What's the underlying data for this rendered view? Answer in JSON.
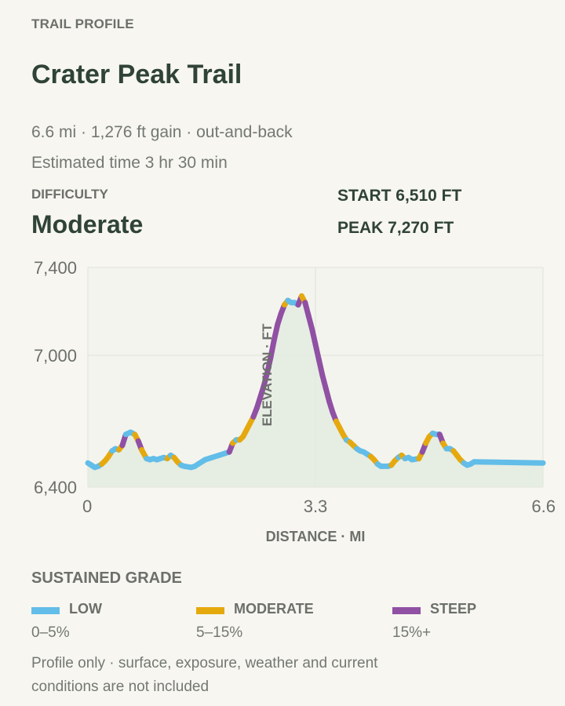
{
  "header": {
    "eyebrow": "TRAIL PROFILE",
    "title": "Crater Peak Trail",
    "meta_line": "6.6 mi · 1,276 ft gain · out-and-back",
    "time_line": "Estimated time 3 hr 30 min",
    "difficulty_label": "DIFFICULTY",
    "difficulty_value": "Moderate",
    "start_stat": "START 6,510 FT",
    "peak_stat": "PEAK 7,270 FT"
  },
  "chart_data": {
    "type": "line",
    "xlabel": "DISTANCE · MI",
    "ylabel": "ELEVATION · FT",
    "xlim": [
      0,
      6.6
    ],
    "ylim": [
      6400,
      7400
    ],
    "x_ticks": [
      {
        "value": 0,
        "label": "0"
      },
      {
        "value": 3.3,
        "label": "3.3"
      },
      {
        "value": 6.6,
        "label": "6.6"
      }
    ],
    "y_ticks": [
      {
        "value": 6400,
        "label": "6,400"
      },
      {
        "value": 7000,
        "label": "7,000"
      },
      {
        "value": 7400,
        "label": "7,400"
      }
    ],
    "grid": true,
    "colors": {
      "low": "#62bde8",
      "moderate": "#e5a90e",
      "steep": "#9050a3"
    },
    "points": [
      [
        0.0,
        6510
      ],
      [
        0.05,
        6500
      ],
      [
        0.1,
        6490
      ],
      [
        0.15,
        6495
      ],
      [
        0.2,
        6505
      ],
      [
        0.25,
        6520
      ],
      [
        0.3,
        6540
      ],
      [
        0.35,
        6565
      ],
      [
        0.4,
        6575
      ],
      [
        0.45,
        6570
      ],
      [
        0.5,
        6590
      ],
      [
        0.55,
        6640
      ],
      [
        0.62,
        6650
      ],
      [
        0.68,
        6640
      ],
      [
        0.73,
        6610
      ],
      [
        0.78,
        6570
      ],
      [
        0.85,
        6530
      ],
      [
        0.9,
        6525
      ],
      [
        0.95,
        6530
      ],
      [
        1.0,
        6525
      ],
      [
        1.05,
        6530
      ],
      [
        1.1,
        6535
      ],
      [
        1.15,
        6530
      ],
      [
        1.2,
        6545
      ],
      [
        1.25,
        6535
      ],
      [
        1.3,
        6515
      ],
      [
        1.35,
        6500
      ],
      [
        1.4,
        6495
      ],
      [
        1.5,
        6490
      ],
      [
        1.55,
        6495
      ],
      [
        1.6,
        6505
      ],
      [
        1.65,
        6515
      ],
      [
        1.7,
        6525
      ],
      [
        1.8,
        6535
      ],
      [
        1.9,
        6545
      ],
      [
        2.0,
        6555
      ],
      [
        2.05,
        6560
      ],
      [
        2.1,
        6600
      ],
      [
        2.15,
        6615
      ],
      [
        2.2,
        6615
      ],
      [
        2.25,
        6630
      ],
      [
        2.3,
        6660
      ],
      [
        2.35,
        6690
      ],
      [
        2.4,
        6720
      ],
      [
        2.45,
        6760
      ],
      [
        2.5,
        6810
      ],
      [
        2.55,
        6860
      ],
      [
        2.6,
        6920
      ],
      [
        2.65,
        6990
      ],
      [
        2.7,
        7070
      ],
      [
        2.75,
        7140
      ],
      [
        2.8,
        7190
      ],
      [
        2.85,
        7230
      ],
      [
        2.9,
        7250
      ],
      [
        2.95,
        7240
      ],
      [
        3.0,
        7240
      ],
      [
        3.05,
        7230
      ],
      [
        3.1,
        7270
      ],
      [
        3.15,
        7240
      ],
      [
        3.2,
        7180
      ],
      [
        3.25,
        7120
      ],
      [
        3.3,
        7050
      ],
      [
        3.35,
        6980
      ],
      [
        3.4,
        6910
      ],
      [
        3.45,
        6850
      ],
      [
        3.5,
        6790
      ],
      [
        3.55,
        6740
      ],
      [
        3.6,
        6700
      ],
      [
        3.65,
        6670
      ],
      [
        3.7,
        6640
      ],
      [
        3.75,
        6615
      ],
      [
        3.8,
        6605
      ],
      [
        3.85,
        6590
      ],
      [
        3.9,
        6575
      ],
      [
        3.95,
        6565
      ],
      [
        4.0,
        6560
      ],
      [
        4.05,
        6550
      ],
      [
        4.1,
        6540
      ],
      [
        4.15,
        6525
      ],
      [
        4.2,
        6505
      ],
      [
        4.25,
        6495
      ],
      [
        4.35,
        6495
      ],
      [
        4.4,
        6500
      ],
      [
        4.45,
        6520
      ],
      [
        4.5,
        6535
      ],
      [
        4.55,
        6545
      ],
      [
        4.6,
        6530
      ],
      [
        4.65,
        6535
      ],
      [
        4.7,
        6525
      ],
      [
        4.8,
        6530
      ],
      [
        4.85,
        6560
      ],
      [
        4.9,
        6600
      ],
      [
        4.95,
        6630
      ],
      [
        5.0,
        6645
      ],
      [
        5.05,
        6640
      ],
      [
        5.1,
        6640
      ],
      [
        5.15,
        6600
      ],
      [
        5.2,
        6575
      ],
      [
        5.25,
        6575
      ],
      [
        5.3,
        6565
      ],
      [
        5.35,
        6545
      ],
      [
        5.4,
        6525
      ],
      [
        5.45,
        6510
      ],
      [
        5.5,
        6500
      ],
      [
        5.55,
        6505
      ],
      [
        5.6,
        6515
      ],
      [
        6.6,
        6510
      ]
    ]
  },
  "legend": {
    "title": "SUSTAINED GRADE",
    "items": [
      {
        "name": "LOW",
        "range": "0–5%",
        "color": "#62bde8"
      },
      {
        "name": "MODERATE",
        "range": "5–15%",
        "color": "#e5a90e"
      },
      {
        "name": "STEEP",
        "range": "15%+",
        "color": "#9050a3"
      }
    ]
  },
  "footnote": "Profile only · surface, exposure, weather and current conditions are not included"
}
